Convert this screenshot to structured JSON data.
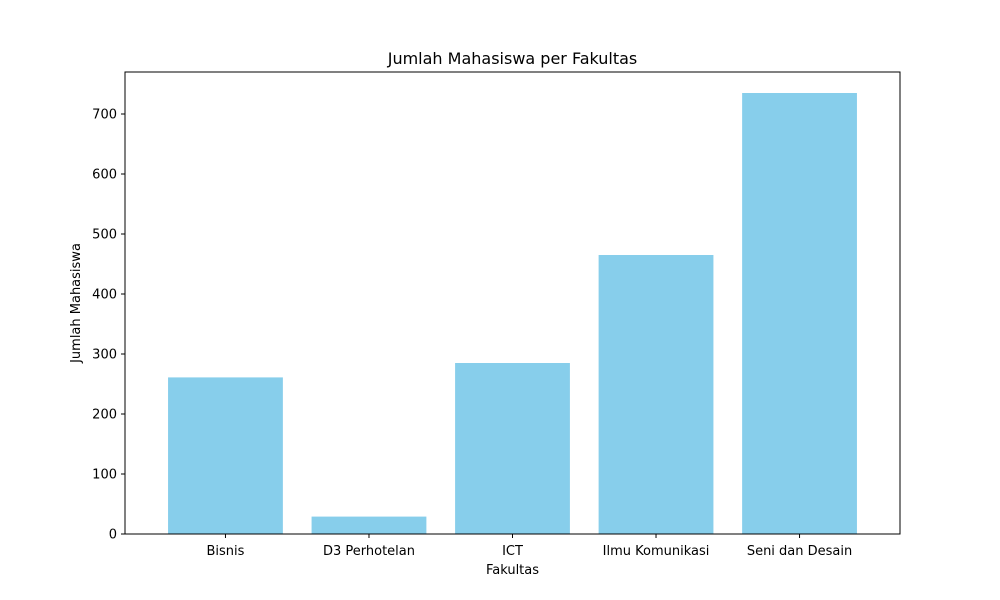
{
  "chart_data": {
    "type": "bar",
    "title": "Jumlah Mahasiswa per Fakultas",
    "xlabel": "Fakultas",
    "ylabel": "Jumlah Mahasiswa",
    "categories": [
      "Bisnis",
      "D3 Perhotelan",
      "ICT",
      "Ilmu Komunikasi",
      "Seni dan Desain"
    ],
    "values": [
      261,
      29,
      285,
      465,
      735
    ],
    "ylim": [
      0,
      770
    ],
    "yticks": [
      "0",
      "100",
      "200",
      "300",
      "400",
      "500",
      "600",
      "700"
    ],
    "bar_color": "#87CEEB",
    "grid": false,
    "legend": "none"
  }
}
